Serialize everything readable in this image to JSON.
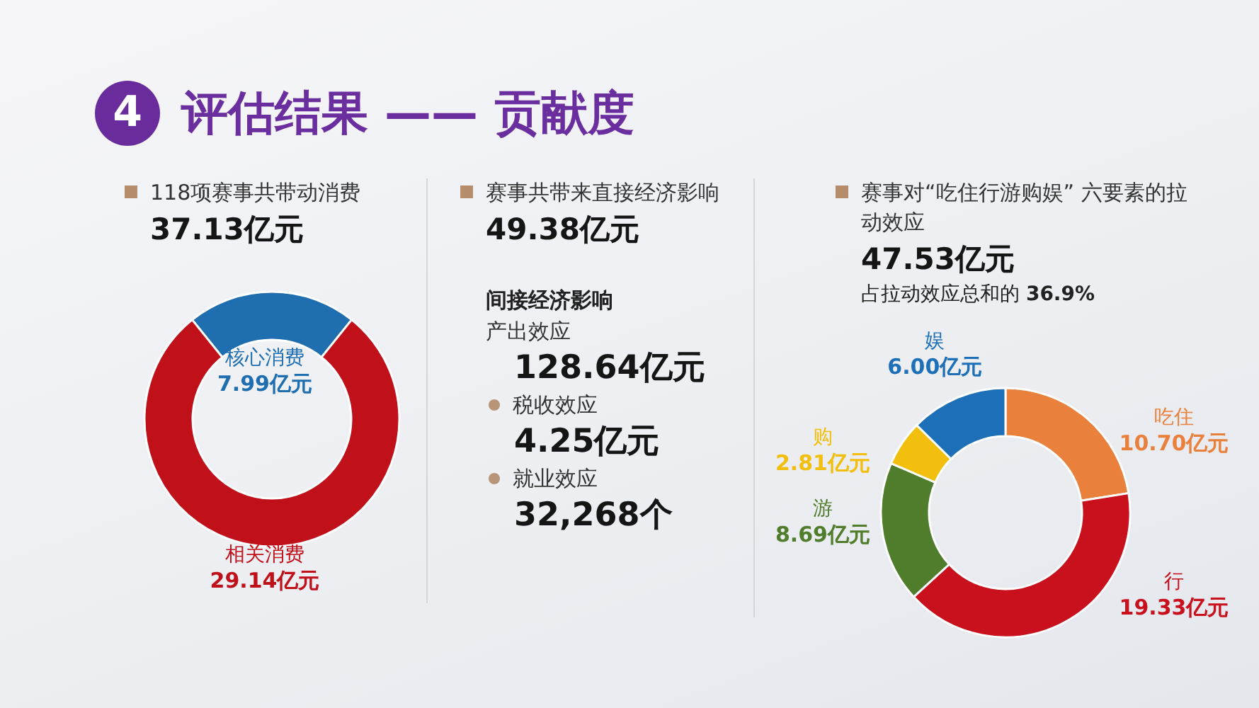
{
  "chart_data": [
    {
      "type": "other",
      "title": "评估结果 —— 贡献度",
      "annotations": [
        "4"
      ]
    },
    {
      "type": "donut",
      "title": "118项赛事共带动消费",
      "subtitle": "37.13亿元",
      "categories": [
        "核心消费",
        "相关消费"
      ],
      "values": [
        7.99,
        29.14
      ],
      "colors": [
        "#1f6eb0",
        "#c0111b"
      ],
      "value_labels": [
        "7.99亿元",
        "29.14亿元"
      ]
    },
    {
      "type": "other",
      "title": "赛事共带来直接经济影响",
      "subtitle": "49.38亿元",
      "annotations": [
        "间接经济影响",
        "产出效应",
        "128.64亿元",
        "税收效应",
        "4.25亿元",
        "就业效应",
        "32,268个"
      ]
    },
    {
      "type": "donut",
      "title": "赛事对“吃住行游购娱” 六要素的拉动效应",
      "subtitle": "47.53亿元",
      "annotations": [
        "占拉动效应总和的 36.9%"
      ],
      "categories": [
        "吃住",
        "行",
        "游",
        "购",
        "娱"
      ],
      "values": [
        10.7,
        19.33,
        8.69,
        2.81,
        6.0
      ],
      "colors": [
        "#e9803c",
        "#c8111c",
        "#4f7d2b",
        "#f2bf0e",
        "#1d70b7"
      ],
      "value_labels": [
        "10.70亿元",
        "19.33亿元",
        "8.69亿元",
        "2.81亿元",
        "6.00亿元"
      ]
    }
  ]
}
